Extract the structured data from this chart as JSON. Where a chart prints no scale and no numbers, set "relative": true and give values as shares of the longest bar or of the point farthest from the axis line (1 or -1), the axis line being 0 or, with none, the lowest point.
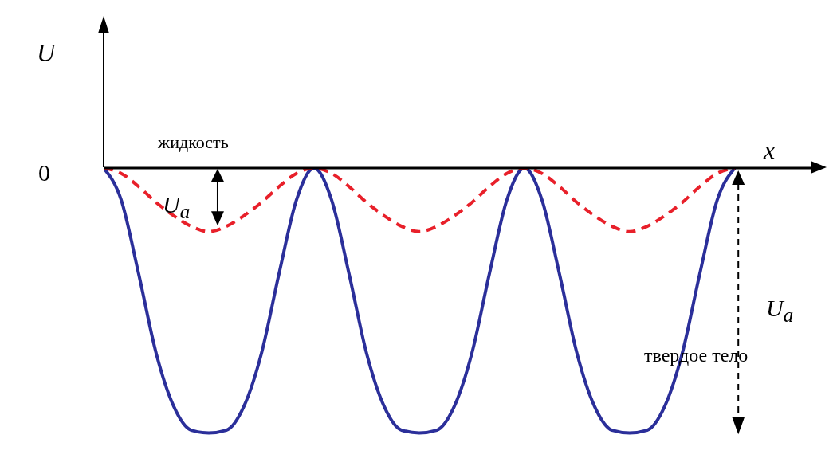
{
  "chart_data": {
    "type": "line",
    "relative": true,
    "xlabel": "x",
    "ylabel": "U",
    "categories": [
      null,
      null,
      null,
      null,
      null,
      null,
      null,
      null,
      null,
      null,
      null,
      null,
      null,
      null,
      null,
      null,
      null,
      null,
      null,
      null,
      null,
      null,
      null,
      null,
      null,
      null,
      null,
      null,
      null,
      null,
      null,
      null,
      null,
      null,
      null,
      null,
      null
    ],
    "series": [
      {
        "color": "#2b2f9a",
        "line_style": "solid",
        "values": [
          0,
          -0.12,
          -0.4,
          -0.7,
          -0.9,
          -0.99,
          -1,
          -0.99,
          -0.9,
          -0.7,
          -0.4,
          -0.12,
          0,
          -0.12,
          -0.4,
          -0.7,
          -0.9,
          -0.99,
          -1,
          -0.99,
          -0.9,
          -0.7,
          -0.4,
          -0.12,
          0,
          -0.12,
          -0.4,
          -0.7,
          -0.9,
          -0.99,
          -1,
          -0.99,
          -0.9,
          -0.7,
          -0.4,
          -0.12,
          0
        ]
      },
      {
        "color": "#e8202a",
        "line_style": "dashed",
        "values": [
          0,
          -0.02,
          -0.07,
          -0.13,
          -0.18,
          -0.22,
          -0.24,
          -0.22,
          -0.18,
          -0.13,
          -0.07,
          -0.02,
          0,
          -0.02,
          -0.07,
          -0.13,
          -0.18,
          -0.22,
          -0.24,
          -0.22,
          -0.18,
          -0.13,
          -0.07,
          -0.02,
          0,
          -0.02,
          -0.07,
          -0.13,
          -0.18,
          -0.22,
          -0.24,
          -0.22,
          -0.18,
          -0.13,
          -0.07,
          -0.02,
          0
        ]
      }
    ],
    "annotations": [
      "0",
      "жидкость",
      "U$_{a}$",
      "U$_{a}$",
      "твердое тело"
    ],
    "marker": "none"
  }
}
